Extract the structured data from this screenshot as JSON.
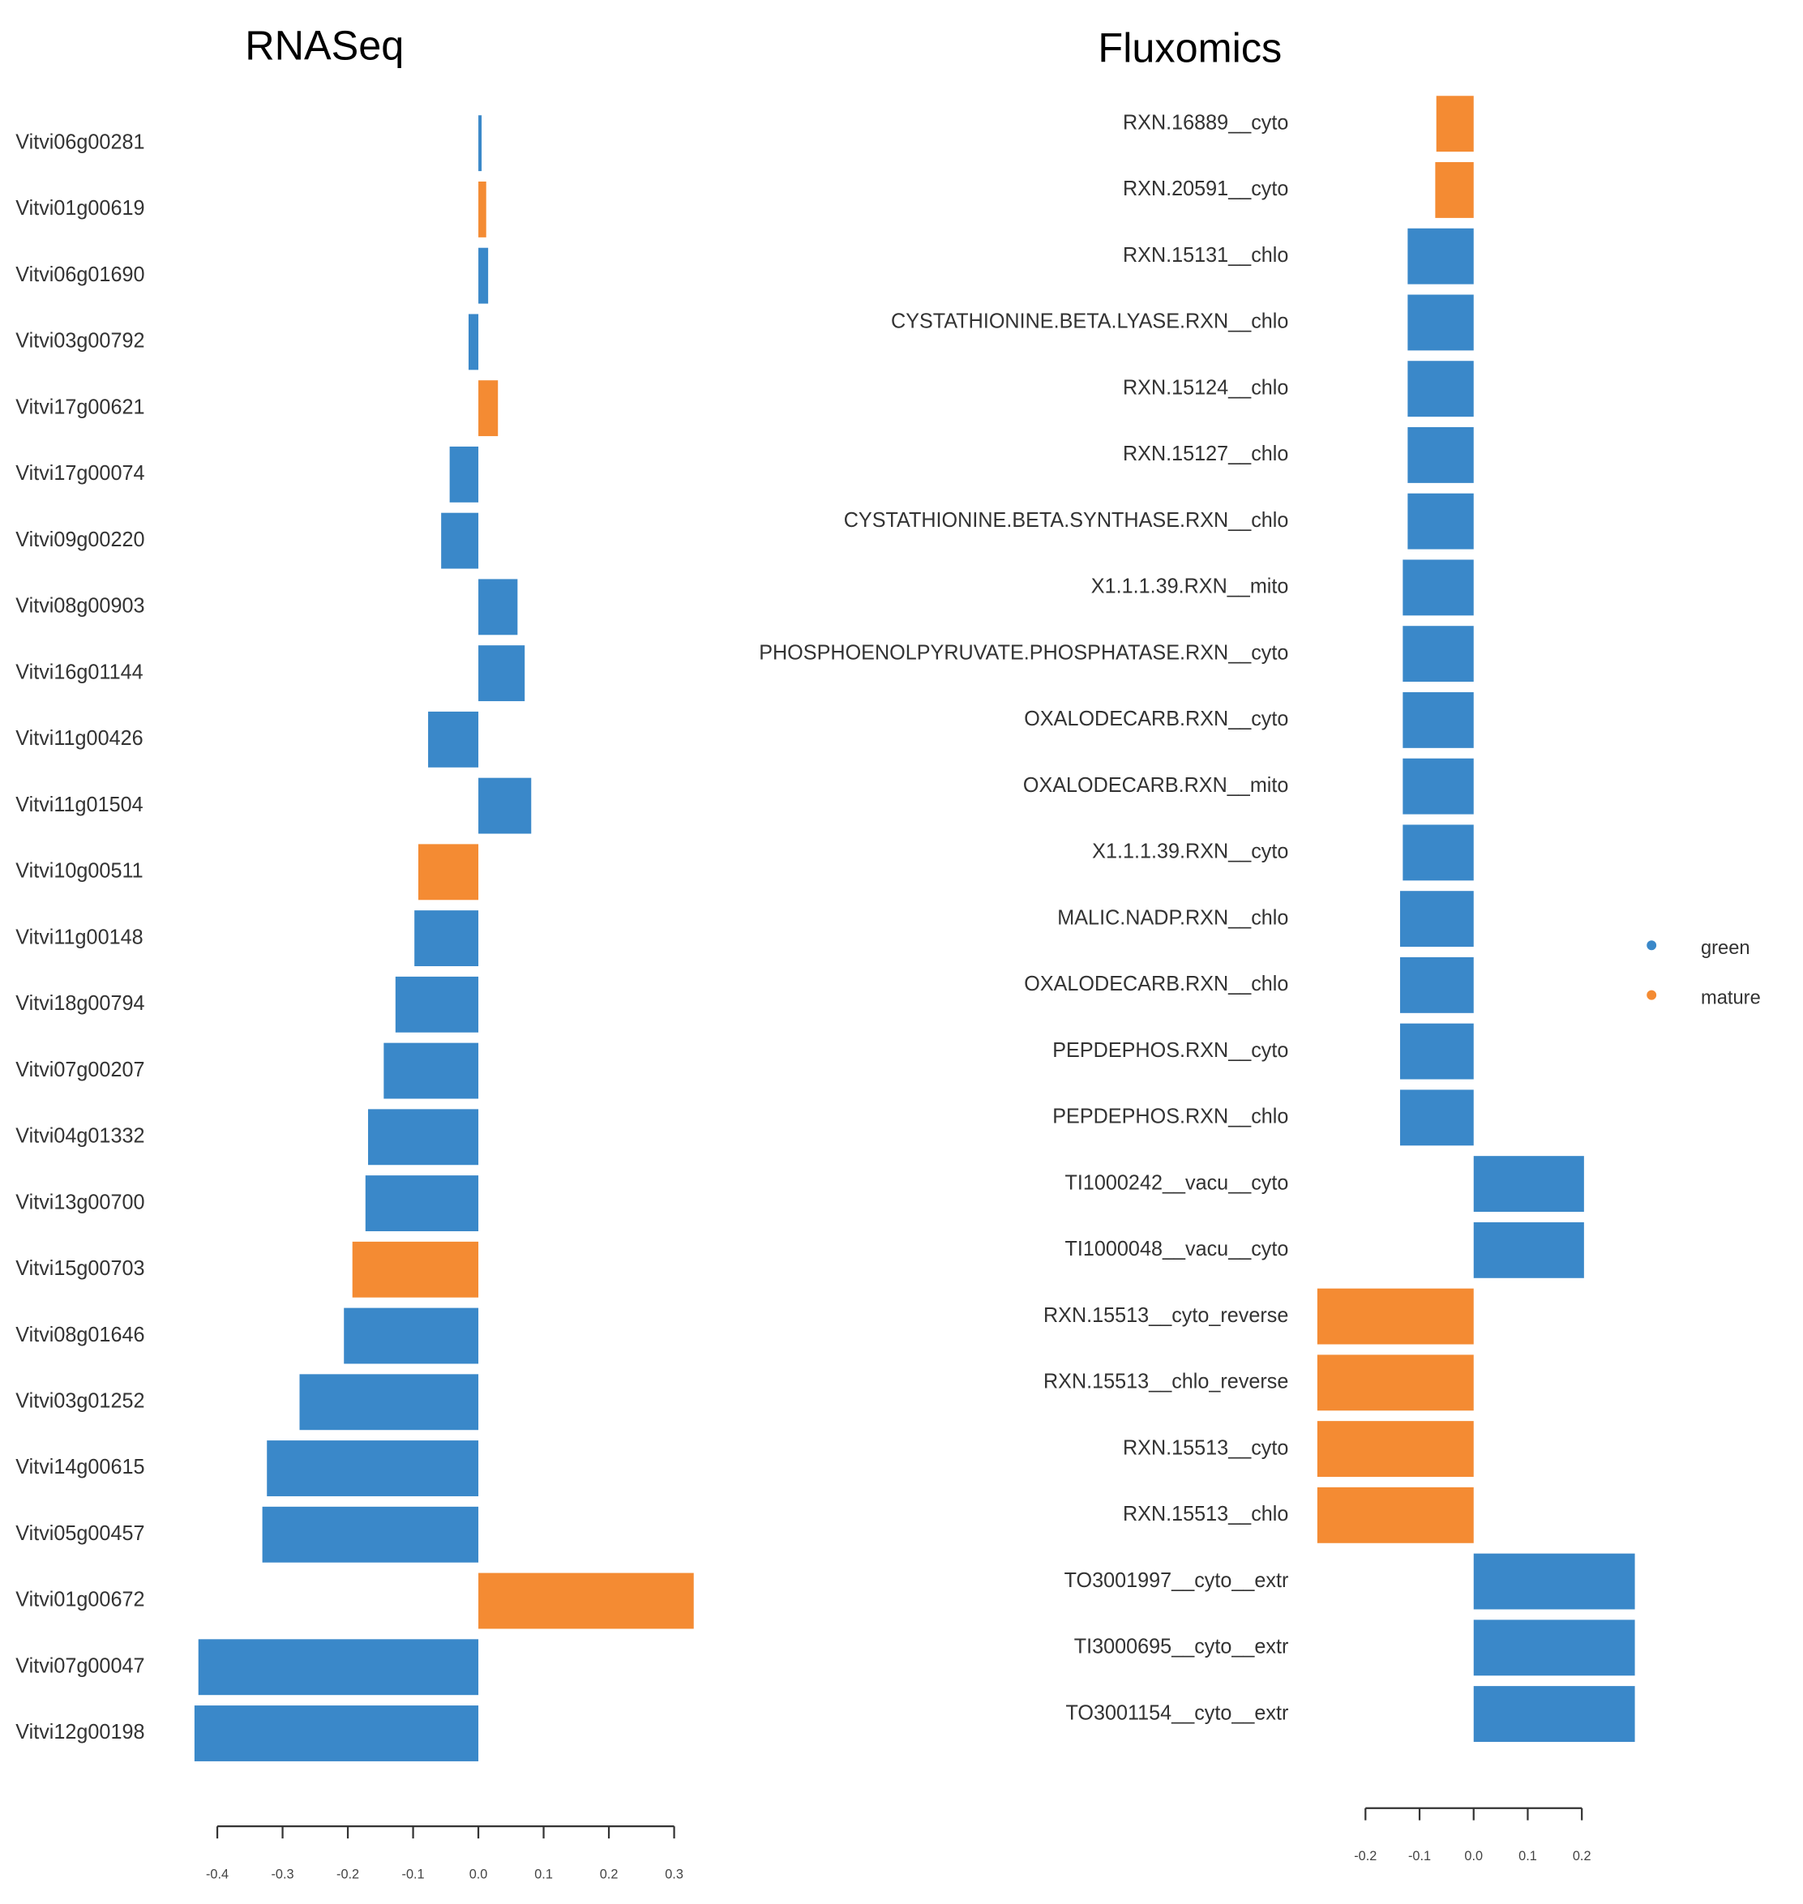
{
  "chart_data": [
    {
      "type": "barh",
      "title": "RNASeq",
      "categories": [
        "Vitvi06g00281",
        "Vitvi01g00619",
        "Vitvi06g01690",
        "Vitvi03g00792",
        "Vitvi17g00621",
        "Vitvi17g00074",
        "Vitvi09g00220",
        "Vitvi08g00903",
        "Vitvi16g01144",
        "Vitvi11g00426",
        "Vitvi11g01504",
        "Vitvi10g00511",
        "Vitvi11g00148",
        "Vitvi18g00794",
        "Vitvi07g00207",
        "Vitvi04g01332",
        "Vitvi13g00700",
        "Vitvi15g00703",
        "Vitvi08g01646",
        "Vitvi03g01252",
        "Vitvi14g00615",
        "Vitvi05g00457",
        "Vitvi01g00672",
        "Vitvi07g00047",
        "Vitvi12g00198"
      ],
      "series": [
        {
          "name": "green",
          "color": "#3a88c9",
          "values": [
            0.005,
            null,
            0.015,
            -0.015,
            null,
            -0.044,
            -0.057,
            0.06,
            0.071,
            -0.077,
            0.081,
            null,
            -0.098,
            -0.127,
            -0.145,
            -0.169,
            -0.173,
            null,
            -0.206,
            -0.274,
            -0.324,
            -0.331,
            null,
            -0.429,
            -0.435
          ]
        },
        {
          "name": "mature",
          "color": "#f48b33",
          "values": [
            null,
            0.012,
            null,
            null,
            0.03,
            null,
            null,
            null,
            null,
            null,
            null,
            -0.092,
            null,
            null,
            null,
            null,
            null,
            -0.193,
            null,
            null,
            null,
            null,
            0.33,
            null,
            null
          ]
        }
      ],
      "xlim": [
        -0.45,
        0.35
      ],
      "xticks": [
        -0.4,
        -0.3,
        -0.2,
        -0.1,
        {
          "value": 0,
          "label": "0.0"
        },
        0.1,
        0.2,
        0.3
      ]
    },
    {
      "type": "barh",
      "title": "Fluxomics",
      "categories": [
        "RXN.16889__cyto",
        "RXN.20591__cyto",
        "RXN.15131__chlo",
        "CYSTATHIONINE.BETA.LYASE.RXN__chlo",
        "RXN.15124__chlo",
        "RXN.15127__chlo",
        "CYSTATHIONINE.BETA.SYNTHASE.RXN__chlo",
        "X1.1.1.39.RXN__mito",
        "PHOSPHOENOLPYRUVATE.PHOSPHATASE.RXN__cyto",
        "OXALODECARB.RXN__cyto",
        "OXALODECARB.RXN__mito",
        "X1.1.1.39.RXN__cyto",
        "MALIC.NADP.RXN__chlo",
        "OXALODECARB.RXN__chlo",
        "PEPDEPHOS.RXN__cyto",
        "PEPDEPHOS.RXN__chlo",
        "TI1000242__vacu__cyto",
        "TI1000048__vacu__cyto",
        "RXN.15513__cyto_reverse",
        "RXN.15513__chlo_reverse",
        "RXN.15513__cyto",
        "RXN.15513__chlo",
        "TO3001997__cyto__extr",
        "TI3000695__cyto__extr",
        "TO3001154__cyto__extr"
      ],
      "series": [
        {
          "name": "green",
          "color": "#3a88c9",
          "values": [
            null,
            null,
            -0.122,
            -0.122,
            -0.122,
            -0.122,
            -0.122,
            -0.131,
            -0.131,
            -0.131,
            -0.131,
            -0.131,
            -0.136,
            -0.136,
            -0.136,
            -0.136,
            0.204,
            0.204,
            null,
            null,
            null,
            null,
            0.298,
            0.298,
            0.298
          ]
        },
        {
          "name": "mature",
          "color": "#f48b33",
          "values": [
            -0.069,
            -0.071,
            null,
            null,
            null,
            null,
            null,
            null,
            null,
            null,
            null,
            null,
            null,
            null,
            null,
            null,
            null,
            null,
            -0.289,
            -0.289,
            -0.289,
            -0.289,
            null,
            null,
            null
          ]
        }
      ],
      "xlim": [
        -0.32,
        0.32
      ],
      "xticks": [
        -0.2,
        -0.1,
        {
          "value": 0,
          "label": "0.0"
        },
        0.1,
        0.2
      ],
      "legend": "right"
    }
  ]
}
